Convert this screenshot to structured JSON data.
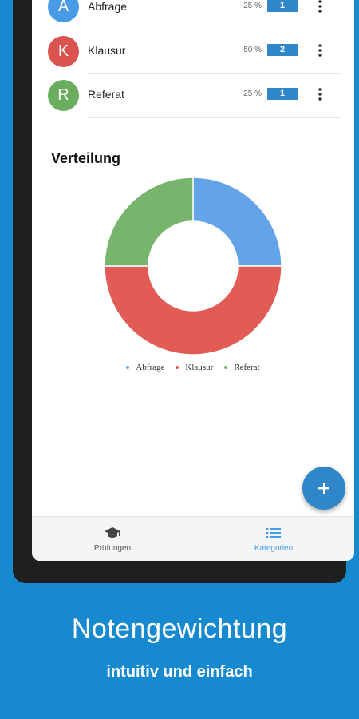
{
  "categories": [
    {
      "letter": "A",
      "name": "Abfrage",
      "percent": "25 %",
      "count": "1",
      "color": "#4a9be6"
    },
    {
      "letter": "K",
      "name": "Klausur",
      "percent": "50 %",
      "count": "2",
      "color": "#d9534f"
    },
    {
      "letter": "R",
      "name": "Referat",
      "percent": "25 %",
      "count": "1",
      "color": "#6aad5e"
    }
  ],
  "section_title": "Verteilung",
  "chart_data": {
    "type": "pie",
    "donut": true,
    "categories": [
      "Abfrage",
      "Klausur",
      "Referat"
    ],
    "values": [
      25,
      50,
      25
    ],
    "colors": [
      "#63a3e8",
      "#e05c55",
      "#77b56c"
    ],
    "legend_position": "bottom"
  },
  "fab_icon": "plus-icon",
  "bottom_nav": [
    {
      "label": "Prüfungen",
      "icon": "graduation-cap-icon",
      "active": false,
      "color": "#555555"
    },
    {
      "label": "Kategorien",
      "icon": "list-icon",
      "active": true,
      "color": "#4a9be6"
    }
  ],
  "promo": {
    "headline": "Notengewichtung",
    "subline": "intuitiv und einfach"
  }
}
